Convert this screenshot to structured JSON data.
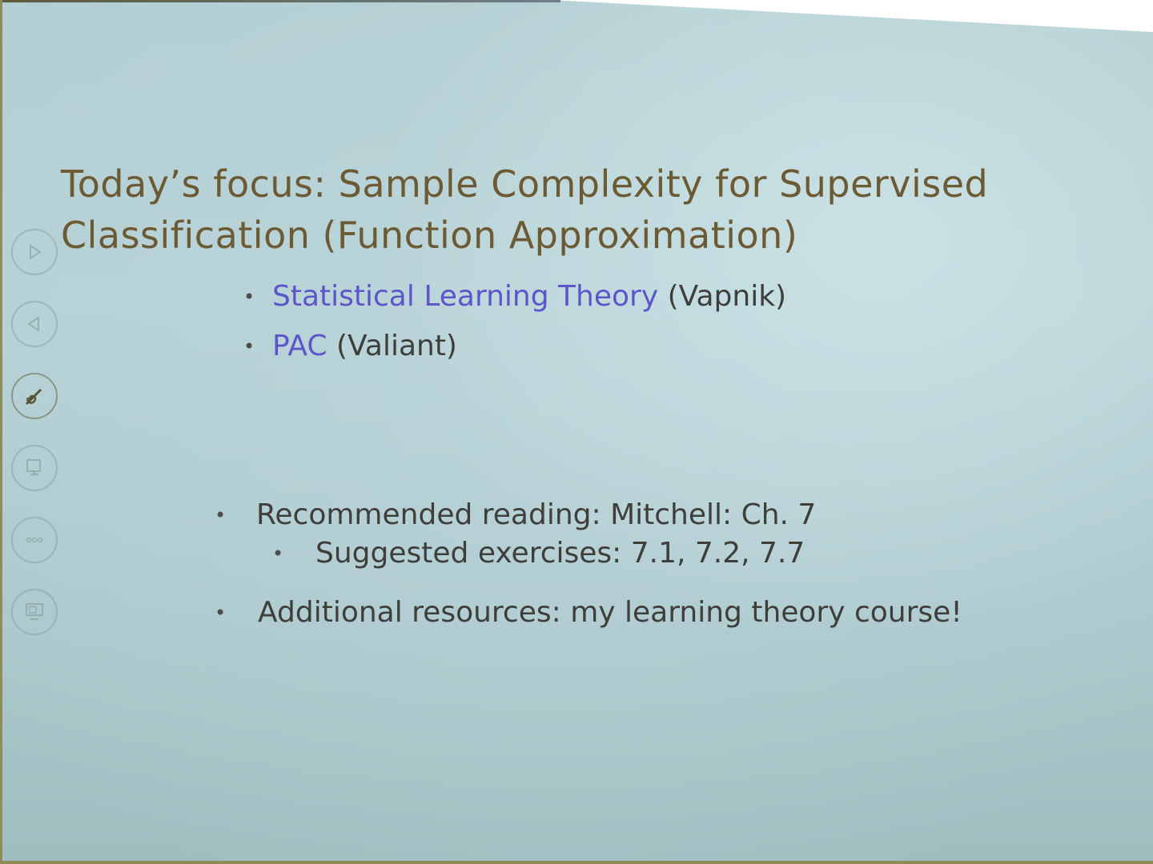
{
  "slide": {
    "title": "Today’s focus: Sample Complexity for Supervised Classification (Function Approximation)",
    "theory_items": [
      {
        "link": "Statistical Learning Theory",
        "rest": "(Vapnik)"
      },
      {
        "link": "PAC",
        "rest": "(Valiant)"
      }
    ],
    "reading": {
      "label": "Recommended reading: Mitchell: Ch. 7",
      "sub": "Suggested exercises: 7.1, 7.2, 7.7"
    },
    "resources": "Additional resources: my learning theory course!"
  },
  "colors": {
    "title": "#6b5a33",
    "link": "#5d55c8",
    "body": "#3e3e3a",
    "background": "#b4cfd3"
  },
  "toolbar": {
    "icons": [
      "next-slide-icon",
      "previous-slide-icon",
      "pen-icon",
      "slide-view-icon",
      "more-options-icon",
      "presenter-view-icon"
    ]
  }
}
